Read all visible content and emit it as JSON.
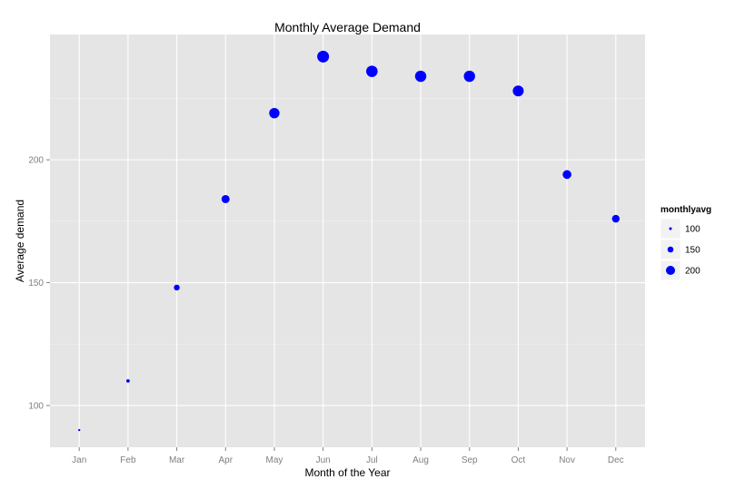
{
  "chart_data": {
    "type": "scatter",
    "title": "Monthly Average Demand",
    "xlabel": "Month of the Year",
    "ylabel": "Average demand",
    "categories": [
      "Jan",
      "Feb",
      "Mar",
      "Apr",
      "May",
      "Jun",
      "Jul",
      "Aug",
      "Sep",
      "Oct",
      "Nov",
      "Dec"
    ],
    "values": [
      90,
      110,
      148,
      184,
      219,
      242,
      236,
      234,
      234,
      228,
      194,
      176
    ],
    "ylim": [
      83,
      251
    ],
    "yticks": [
      100,
      150,
      200
    ],
    "grid": true,
    "point_color": "#0000ff",
    "legend": {
      "title": "monthlyavg",
      "position": "right",
      "entries": [
        {
          "label": "100",
          "value": 100
        },
        {
          "label": "150",
          "value": 150
        },
        {
          "label": "200",
          "value": 200
        }
      ]
    }
  }
}
